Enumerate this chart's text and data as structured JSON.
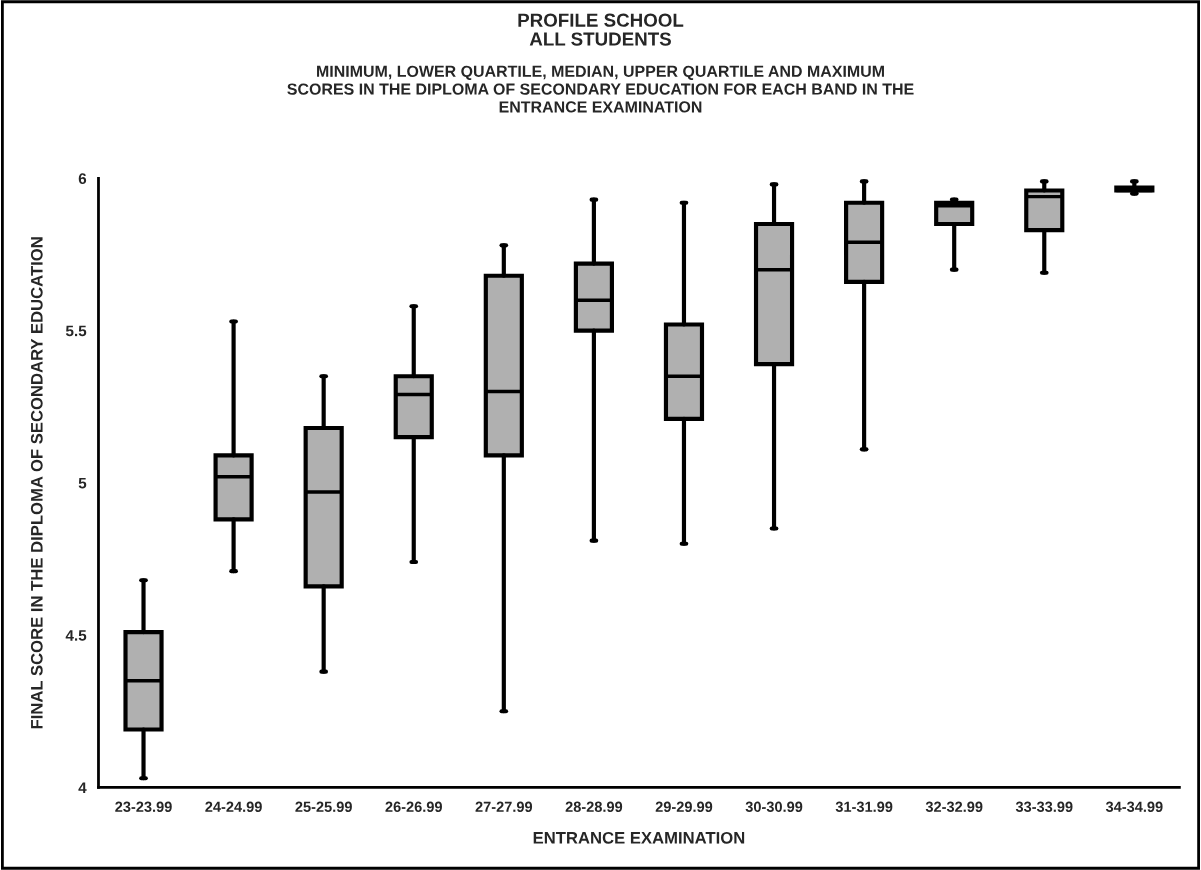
{
  "chart_data": {
    "type": "box",
    "title": "PROFILE SCHOOL\nALL STUDENTS",
    "subtitle": "MINIMUM, LOWER QUARTILE, MEDIAN, UPPER QUARTILE AND MAXIMUM\nSCORES IN THE DIPLOMA OF SECONDARY EDUCATION FOR EACH BAND IN THE\nENTRANCE EXAMINATION",
    "xlabel": "ENTRANCE EXAMINATION",
    "ylabel": "FINAL SCORE IN THE DIPLOMA OF SECONDARY EDUCATION",
    "categories": [
      "23-23.99",
      "24-24.99",
      "25-25.99",
      "26-26.99",
      "27-27.99",
      "28-28.99",
      "29-29.99",
      "30-30.99",
      "31-31.99",
      "32-32.99",
      "33-33.99",
      "34-34.99"
    ],
    "series": [
      {
        "color": "#b0b0b0",
        "boxes": [
          {
            "low": 4.03,
            "q1": 4.19,
            "median": 4.35,
            "q3": 4.51,
            "high": 4.68
          },
          {
            "low": 4.71,
            "q1": 4.88,
            "median": 5.02,
            "q3": 5.09,
            "high": 5.53
          },
          {
            "low": 4.38,
            "q1": 4.66,
            "median": 4.97,
            "q3": 5.18,
            "high": 5.35
          },
          {
            "low": 4.74,
            "q1": 5.15,
            "median": 5.29,
            "q3": 5.35,
            "high": 5.58
          },
          {
            "low": 4.25,
            "q1": 5.09,
            "median": 5.3,
            "q3": 5.68,
            "high": 5.78
          },
          {
            "low": 4.81,
            "q1": 5.5,
            "median": 5.6,
            "q3": 5.72,
            "high": 5.93
          },
          {
            "low": 4.8,
            "q1": 5.21,
            "median": 5.35,
            "q3": 5.52,
            "high": 5.92
          },
          {
            "low": 4.85,
            "q1": 5.39,
            "median": 5.7,
            "q3": 5.85,
            "high": 5.98
          },
          {
            "low": 5.11,
            "q1": 5.66,
            "median": 5.79,
            "q3": 5.92,
            "high": 5.99
          },
          {
            "low": 5.7,
            "q1": 5.85,
            "median": 5.91,
            "q3": 5.92,
            "high": 5.93
          },
          {
            "low": 5.69,
            "q1": 5.83,
            "median": 5.94,
            "q3": 5.96,
            "high": 5.99
          },
          {
            "low": 5.95,
            "q1": 5.96,
            "median": 5.96,
            "q3": 5.97,
            "high": 5.99
          }
        ]
      }
    ],
    "ylim": [
      4,
      6
    ],
    "yticks": [
      4,
      4.5,
      5,
      5.5,
      6
    ],
    "grid": false,
    "legend": false
  }
}
